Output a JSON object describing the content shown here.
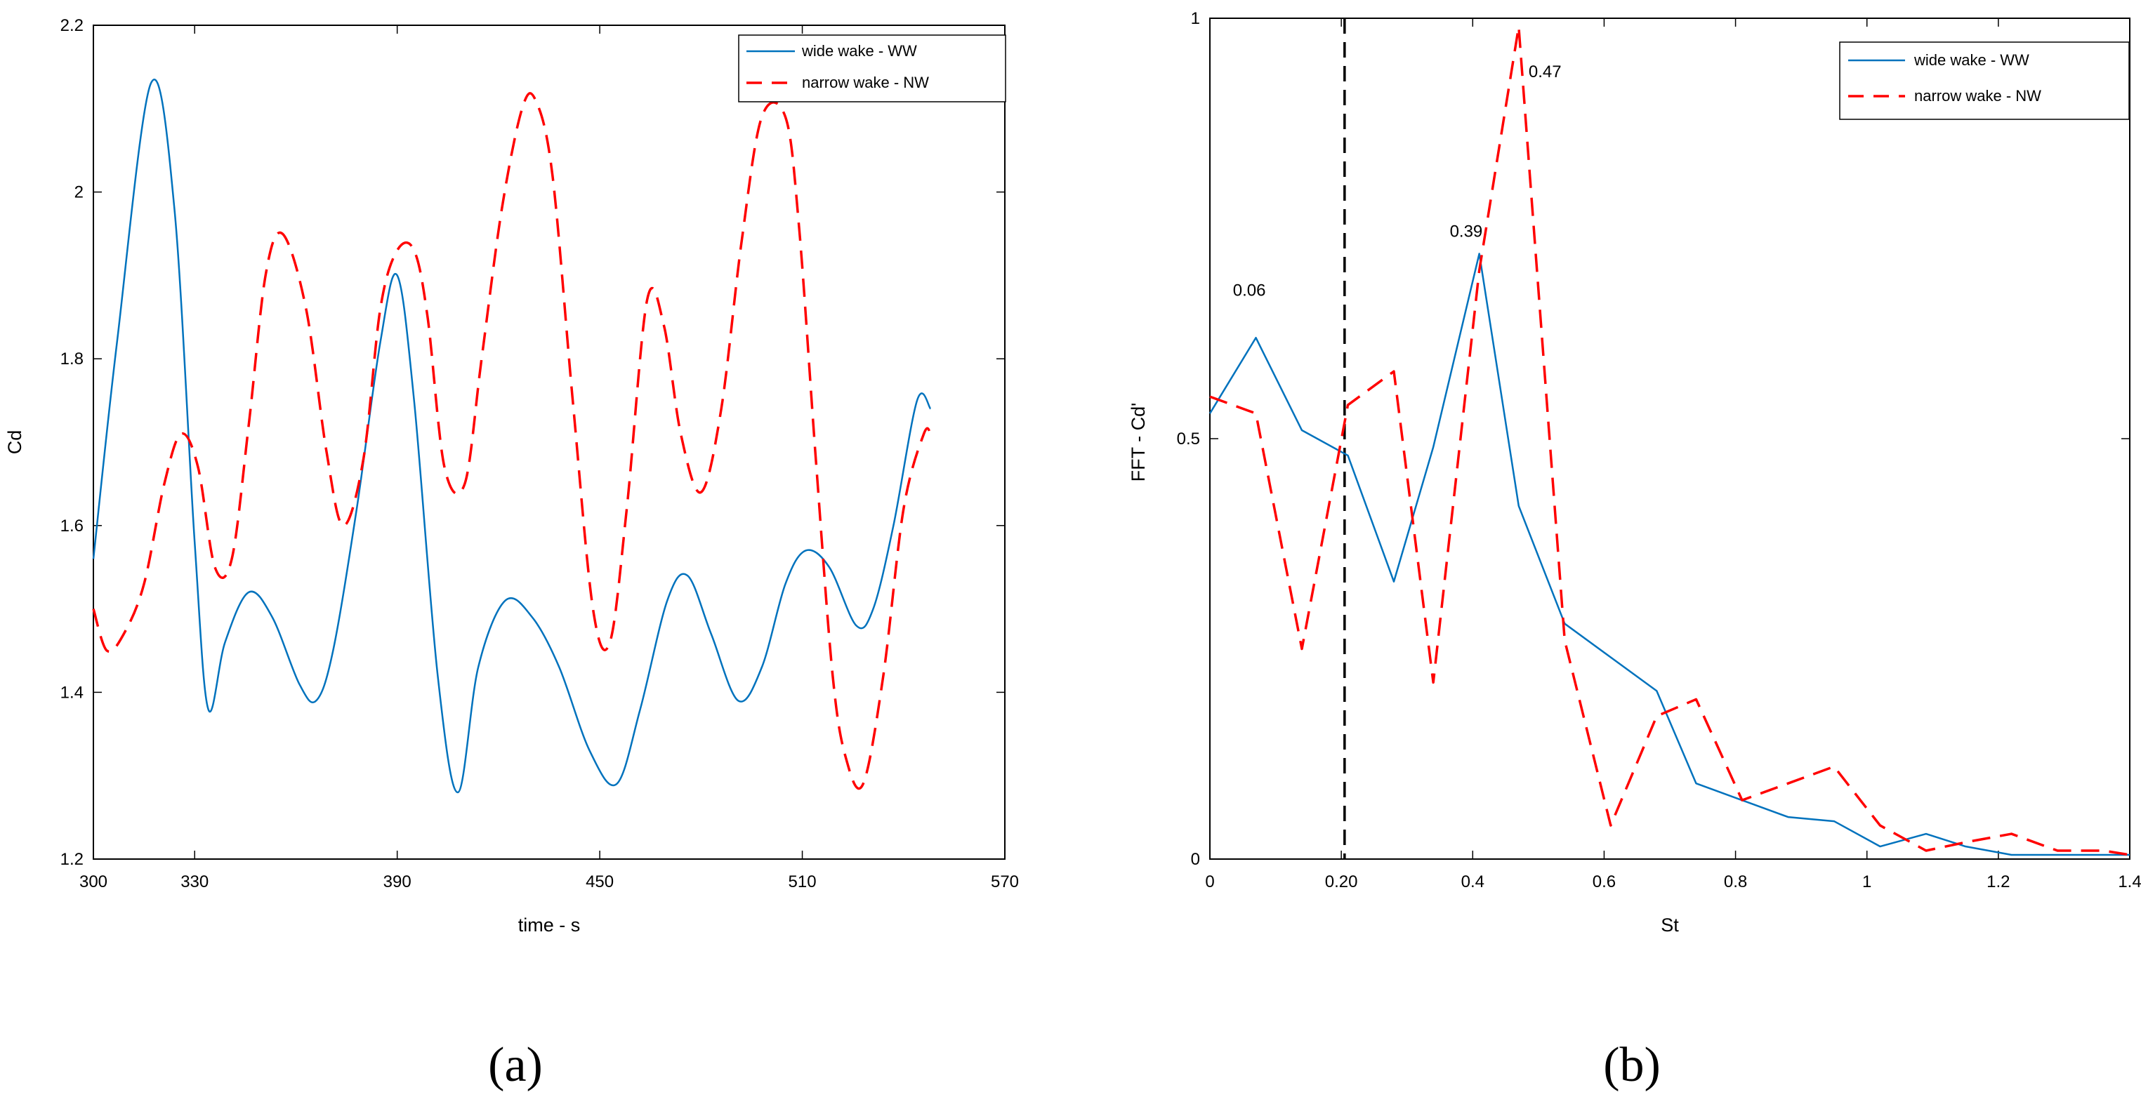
{
  "panel_labels": {
    "a": "(a)",
    "b": "(b)"
  },
  "chart_data": [
    {
      "type": "line",
      "panel": "(a)",
      "title": "",
      "xlabel": "time - s",
      "ylabel": "Cd",
      "xlim": [
        300,
        570
      ],
      "ylim": [
        1.2,
        2.2
      ],
      "xticks": [
        300,
        330,
        390,
        450,
        510,
        570
      ],
      "yticks": [
        1.2,
        1.4,
        1.6,
        1.8,
        2.0,
        2.2
      ],
      "xtick_labels": [
        "300",
        "330",
        "390",
        "450",
        "510",
        "570"
      ],
      "ytick_labels": [
        "1.2",
        "1.4",
        "1.6",
        "1.8",
        "2",
        "2.2"
      ],
      "legend_position": "top-right",
      "series": [
        {
          "name": "wide wake - WW",
          "color": "#0072BD",
          "style": "solid",
          "x": [
            300,
            307,
            317,
            324,
            330,
            334,
            339,
            346,
            353,
            361,
            366,
            371,
            378,
            385,
            390,
            395,
            402,
            408,
            414,
            422,
            430,
            438,
            447,
            455,
            462,
            470,
            476,
            483,
            491,
            498,
            505,
            511,
            518,
            526,
            531,
            537,
            544,
            548
          ],
          "y": [
            1.56,
            1.82,
            2.13,
            1.98,
            1.58,
            1.38,
            1.46,
            1.52,
            1.49,
            1.41,
            1.39,
            1.45,
            1.62,
            1.82,
            1.9,
            1.75,
            1.42,
            1.28,
            1.43,
            1.51,
            1.49,
            1.43,
            1.33,
            1.29,
            1.38,
            1.51,
            1.54,
            1.47,
            1.39,
            1.43,
            1.53,
            1.57,
            1.55,
            1.48,
            1.5,
            1.6,
            1.75,
            1.74
          ]
        },
        {
          "name": "narrow wake - NW",
          "color": "#FF0000",
          "style": "dashed",
          "x": [
            300,
            304,
            309,
            315,
            321,
            326,
            331,
            336,
            341,
            346,
            351,
            356,
            363,
            369,
            374,
            380,
            385,
            390,
            395,
            399,
            404,
            410,
            415,
            421,
            427,
            431,
            436,
            442,
            448,
            453,
            458,
            464,
            469,
            474,
            480,
            486,
            492,
            498,
            505,
            509,
            514,
            519,
            523,
            528,
            534,
            540,
            546,
            548
          ],
          "y": [
            1.5,
            1.45,
            1.47,
            1.53,
            1.65,
            1.71,
            1.67,
            1.55,
            1.56,
            1.72,
            1.9,
            1.95,
            1.86,
            1.69,
            1.6,
            1.68,
            1.86,
            1.93,
            1.93,
            1.85,
            1.67,
            1.65,
            1.8,
            1.98,
            2.1,
            2.11,
            2.02,
            1.75,
            1.5,
            1.46,
            1.62,
            1.87,
            1.84,
            1.71,
            1.64,
            1.74,
            1.94,
            2.09,
            2.09,
            1.96,
            1.68,
            1.42,
            1.32,
            1.29,
            1.42,
            1.62,
            1.71,
            1.71
          ]
        }
      ]
    },
    {
      "type": "line",
      "panel": "(b)",
      "title": "",
      "xlabel": "St",
      "ylabel": "FFT - Cd'",
      "xlim": [
        0,
        1.4
      ],
      "ylim": [
        0,
        1
      ],
      "xticks": [
        0,
        0.2,
        0.4,
        0.6,
        0.8,
        1.0,
        1.2,
        1.4
      ],
      "yticks": [
        0,
        0.5,
        1
      ],
      "xtick_labels": [
        "0",
        "0.20",
        "0.4",
        "0.6",
        "0.8",
        "1",
        "1.2",
        "1.4"
      ],
      "ytick_labels": [
        "0",
        "0.5",
        "1"
      ],
      "legend_position": "top-right",
      "vertical_line": {
        "x": 0.205,
        "color": "#000000",
        "style": "dashed"
      },
      "annotations": [
        {
          "text": "0.06",
          "x": 0.06,
          "y": 0.67
        },
        {
          "text": "0.39",
          "x": 0.39,
          "y": 0.74
        },
        {
          "text": "0.47",
          "x": 0.51,
          "y": 0.93
        }
      ],
      "series": [
        {
          "name": "wide wake - WW",
          "color": "#0072BD",
          "style": "solid",
          "x": [
            0,
            0.07,
            0.14,
            0.21,
            0.28,
            0.34,
            0.41,
            0.47,
            0.54,
            0.61,
            0.68,
            0.74,
            0.81,
            0.88,
            0.95,
            1.02,
            1.09,
            1.15,
            1.22,
            1.29,
            1.36,
            1.4
          ],
          "y": [
            0.53,
            0.62,
            0.51,
            0.48,
            0.33,
            0.49,
            0.72,
            0.42,
            0.28,
            0.24,
            0.2,
            0.09,
            0.07,
            0.05,
            0.045,
            0.015,
            0.03,
            0.015,
            0.005,
            0.005,
            0.005,
            0.005
          ]
        },
        {
          "name": "narrow wake - NW",
          "color": "#FF0000",
          "style": "dashed",
          "x": [
            0,
            0.07,
            0.14,
            0.21,
            0.28,
            0.34,
            0.41,
            0.47,
            0.54,
            0.61,
            0.68,
            0.74,
            0.81,
            0.88,
            0.95,
            1.02,
            1.09,
            1.15,
            1.22,
            1.29,
            1.36,
            1.4
          ],
          "y": [
            0.55,
            0.53,
            0.25,
            0.54,
            0.58,
            0.21,
            0.7,
            0.99,
            0.26,
            0.04,
            0.17,
            0.19,
            0.07,
            0.09,
            0.11,
            0.04,
            0.01,
            0.02,
            0.03,
            0.01,
            0.01,
            0.005
          ]
        }
      ]
    }
  ]
}
